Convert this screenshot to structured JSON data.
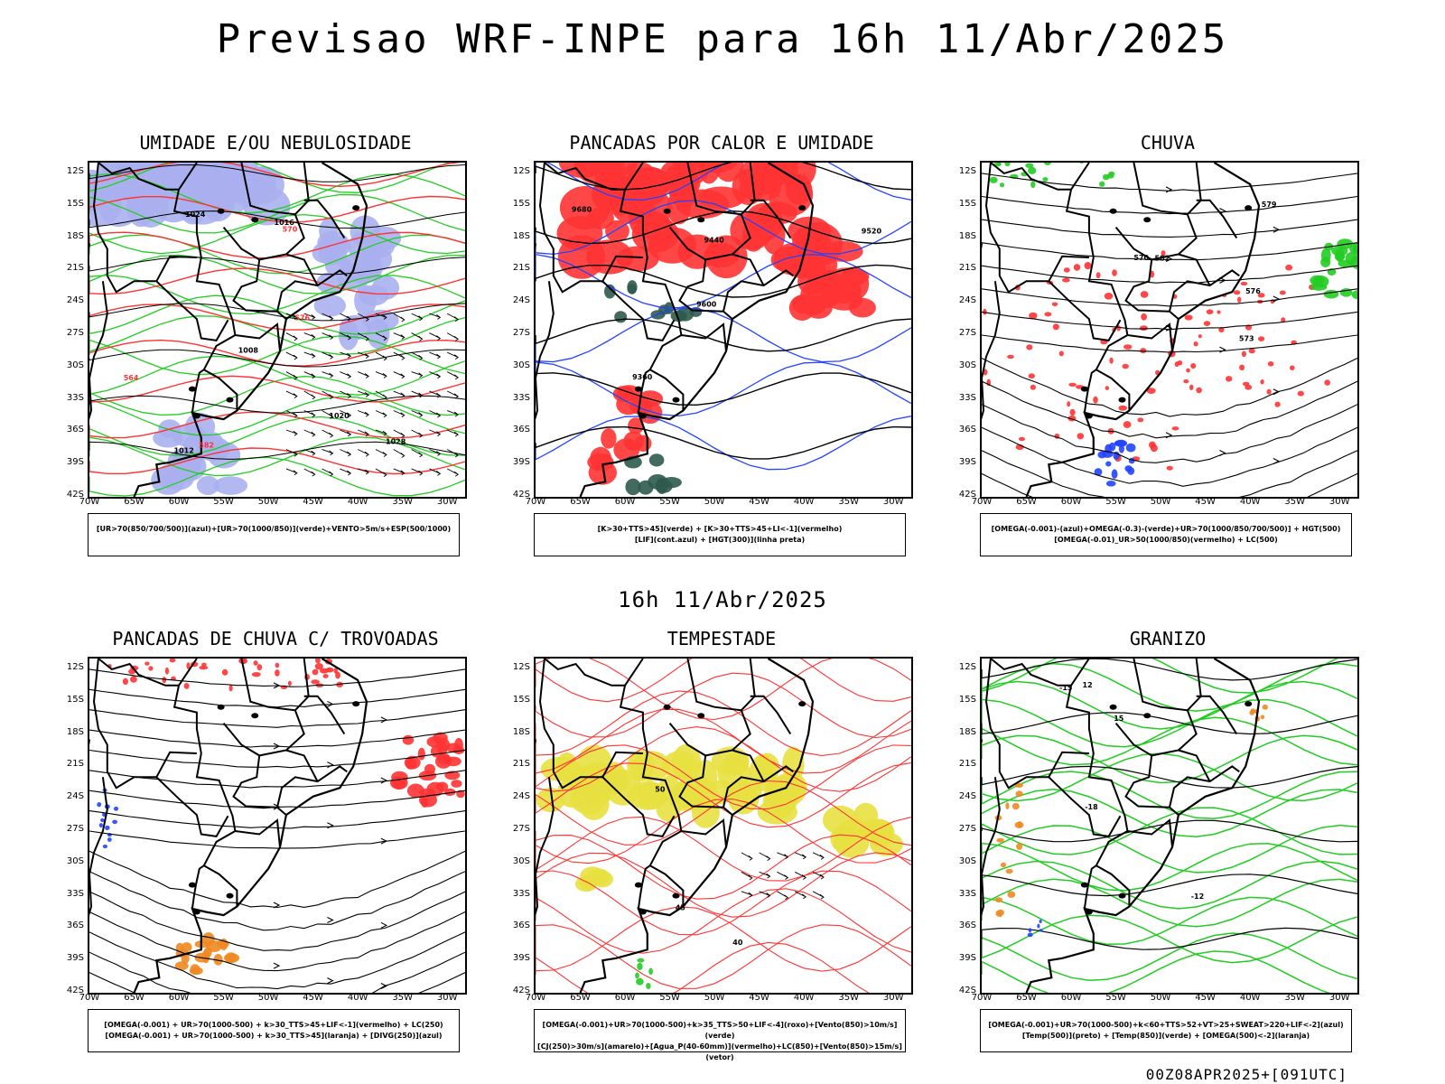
{
  "title": "Previsao WRF-INPE  para 16h 11/Abr/2025",
  "subtitle": "16h 11/Abr/2025",
  "footer": "00Z08APR2025+[091UTC]",
  "axes": {
    "lat": [
      "12S",
      "15S",
      "18S",
      "21S",
      "24S",
      "27S",
      "30S",
      "33S",
      "36S",
      "39S",
      "42S"
    ],
    "lon": [
      "70W",
      "65W",
      "60W",
      "55W",
      "50W",
      "45W",
      "40W",
      "35W",
      "30W"
    ]
  },
  "panels": [
    {
      "id": "umidade",
      "title": "UMIDADE E/OU NEBULOSIDADE",
      "legend": [
        "[UR>70(850/700/500)](azul)+[UR>70(1000/850)](verde)+VENTO>5m/s+ESP(500/1000)"
      ],
      "contour_labels": [
        "1008",
        "1012",
        "1016",
        "1020",
        "1024",
        "1028",
        "570",
        "576",
        "564",
        "582"
      ]
    },
    {
      "id": "pancadas-calor",
      "title": "PANCADAS POR CALOR E UMIDADE",
      "legend": [
        "[K>30+TTS>45](verde) + [K>30+TTS>45+LI<-1](vermelho)",
        "[LIF](cont.azul) + [HGT(300)](linha preta)"
      ],
      "contour_labels": [
        "9600",
        "9520",
        "9440",
        "9360",
        "9680"
      ]
    },
    {
      "id": "chuva",
      "title": "CHUVA",
      "legend": [
        "[OMEGA(-0.001)-(azul)+OMEGA(-0.3)-(verde)+UR>70(1000/850/700/500)] + HGT(500)",
        "[OMEGA(-0.01)_UR>50(1000/850)(vermelho) + LC(500)"
      ],
      "contour_labels": [
        "582",
        "576",
        "570",
        "573",
        "579"
      ]
    },
    {
      "id": "pancadas-trovoadas",
      "title": "PANCADAS DE CHUVA C/ TROVOADAS",
      "legend": [
        "[OMEGA(-0.001) + UR>70(1000-500) + k>30_TTS>45+LIF<-1](vermelho) + LC(250)",
        "[OMEGA(-0.001) + UR>70(1000-500) + k>30_TTS>45](laranja) + [DIVG(250)](azul)"
      ],
      "contour_labels": []
    },
    {
      "id": "tempestade",
      "title": "TEMPESTADE",
      "legend": [
        "[OMEGA(-0.001)+UR>70(1000-500)+k>35_TTS>50+LIF<-4](roxo)+[Vento(850)>10m/s](verde)",
        "[CJ(250)>30m/s](amarelo)+[Agua_P(40-60mm)](vermelho)+LC(850)+[Vento(850)>15m/s](vetor)"
      ],
      "contour_labels": [
        "40",
        "45",
        "50"
      ]
    },
    {
      "id": "granizo",
      "title": "GRANIZO",
      "legend": [
        "[OMEGA(-0.001)+UR>70(1000-500)+k<60+TTS>52+VT>25+SWEAT>220+LIF<-2](azul)",
        "[Temp(500)](preto) + [Temp(850)](verde) + [OMEGA(500)<-2](laranja)"
      ],
      "contour_labels": [
        "-12",
        "-15",
        "-18",
        "15",
        "12"
      ]
    }
  ],
  "colors": {
    "red": "#ff3333",
    "green": "#22cc22",
    "blue": "#2244ff",
    "lavender": "#aab0ee",
    "orange": "#ee8822",
    "yellow": "#e8e040",
    "darkgreen": "#2f5a4e",
    "black": "#000000"
  }
}
